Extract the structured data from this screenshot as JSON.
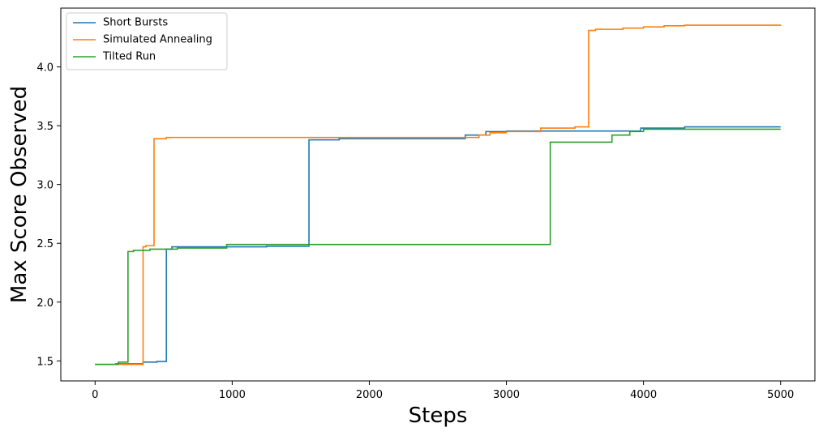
{
  "chart_data": {
    "type": "line",
    "step": "post",
    "x_label": "Steps",
    "y_label": "Max Score Observed",
    "xlim": [
      -250,
      5250
    ],
    "ylim": [
      1.33,
      4.5
    ],
    "xticks": [
      0,
      1000,
      2000,
      3000,
      4000,
      5000
    ],
    "yticks": [
      {
        "value": 1.5,
        "label": "1.5"
      },
      {
        "value": 2.0,
        "label": "2.0"
      },
      {
        "value": 2.5,
        "label": "2.5"
      },
      {
        "value": 3.0,
        "label": "3.0"
      },
      {
        "value": 3.5,
        "label": "3.5"
      },
      {
        "value": 4.0,
        "label": "4.0"
      }
    ],
    "legend": "upper left",
    "grid": false,
    "series": [
      {
        "name": "Short Bursts",
        "color": "#1f77b4",
        "x": [
          0,
          150,
          350,
          450,
          520,
          560,
          1000,
          1250,
          1560,
          1780,
          2700,
          2850,
          3000,
          3980,
          4300,
          5000
        ],
        "values": [
          1.47,
          1.475,
          1.49,
          1.495,
          2.45,
          2.47,
          2.47,
          2.475,
          3.38,
          3.39,
          3.42,
          3.45,
          3.455,
          3.48,
          3.49,
          3.49
        ]
      },
      {
        "name": "Simulated Annealing",
        "color": "#ff7f0e",
        "x": [
          0,
          350,
          370,
          430,
          520,
          2700,
          2800,
          2880,
          3000,
          3250,
          3500,
          3600,
          3650,
          3850,
          4000,
          4150,
          4300,
          5000
        ],
        "values": [
          1.47,
          2.47,
          2.48,
          3.39,
          3.4,
          3.4,
          3.42,
          3.44,
          3.45,
          3.48,
          3.49,
          4.31,
          4.32,
          4.33,
          4.34,
          4.35,
          4.355,
          4.36
        ]
      },
      {
        "name": "Tilted Run",
        "color": "#2ca02c",
        "x": [
          0,
          170,
          240,
          280,
          400,
          600,
          960,
          3320,
          3770,
          3900,
          4000,
          5000
        ],
        "values": [
          1.47,
          1.49,
          2.43,
          2.44,
          2.45,
          2.46,
          2.49,
          3.36,
          3.42,
          3.45,
          3.47,
          3.47
        ]
      }
    ]
  }
}
